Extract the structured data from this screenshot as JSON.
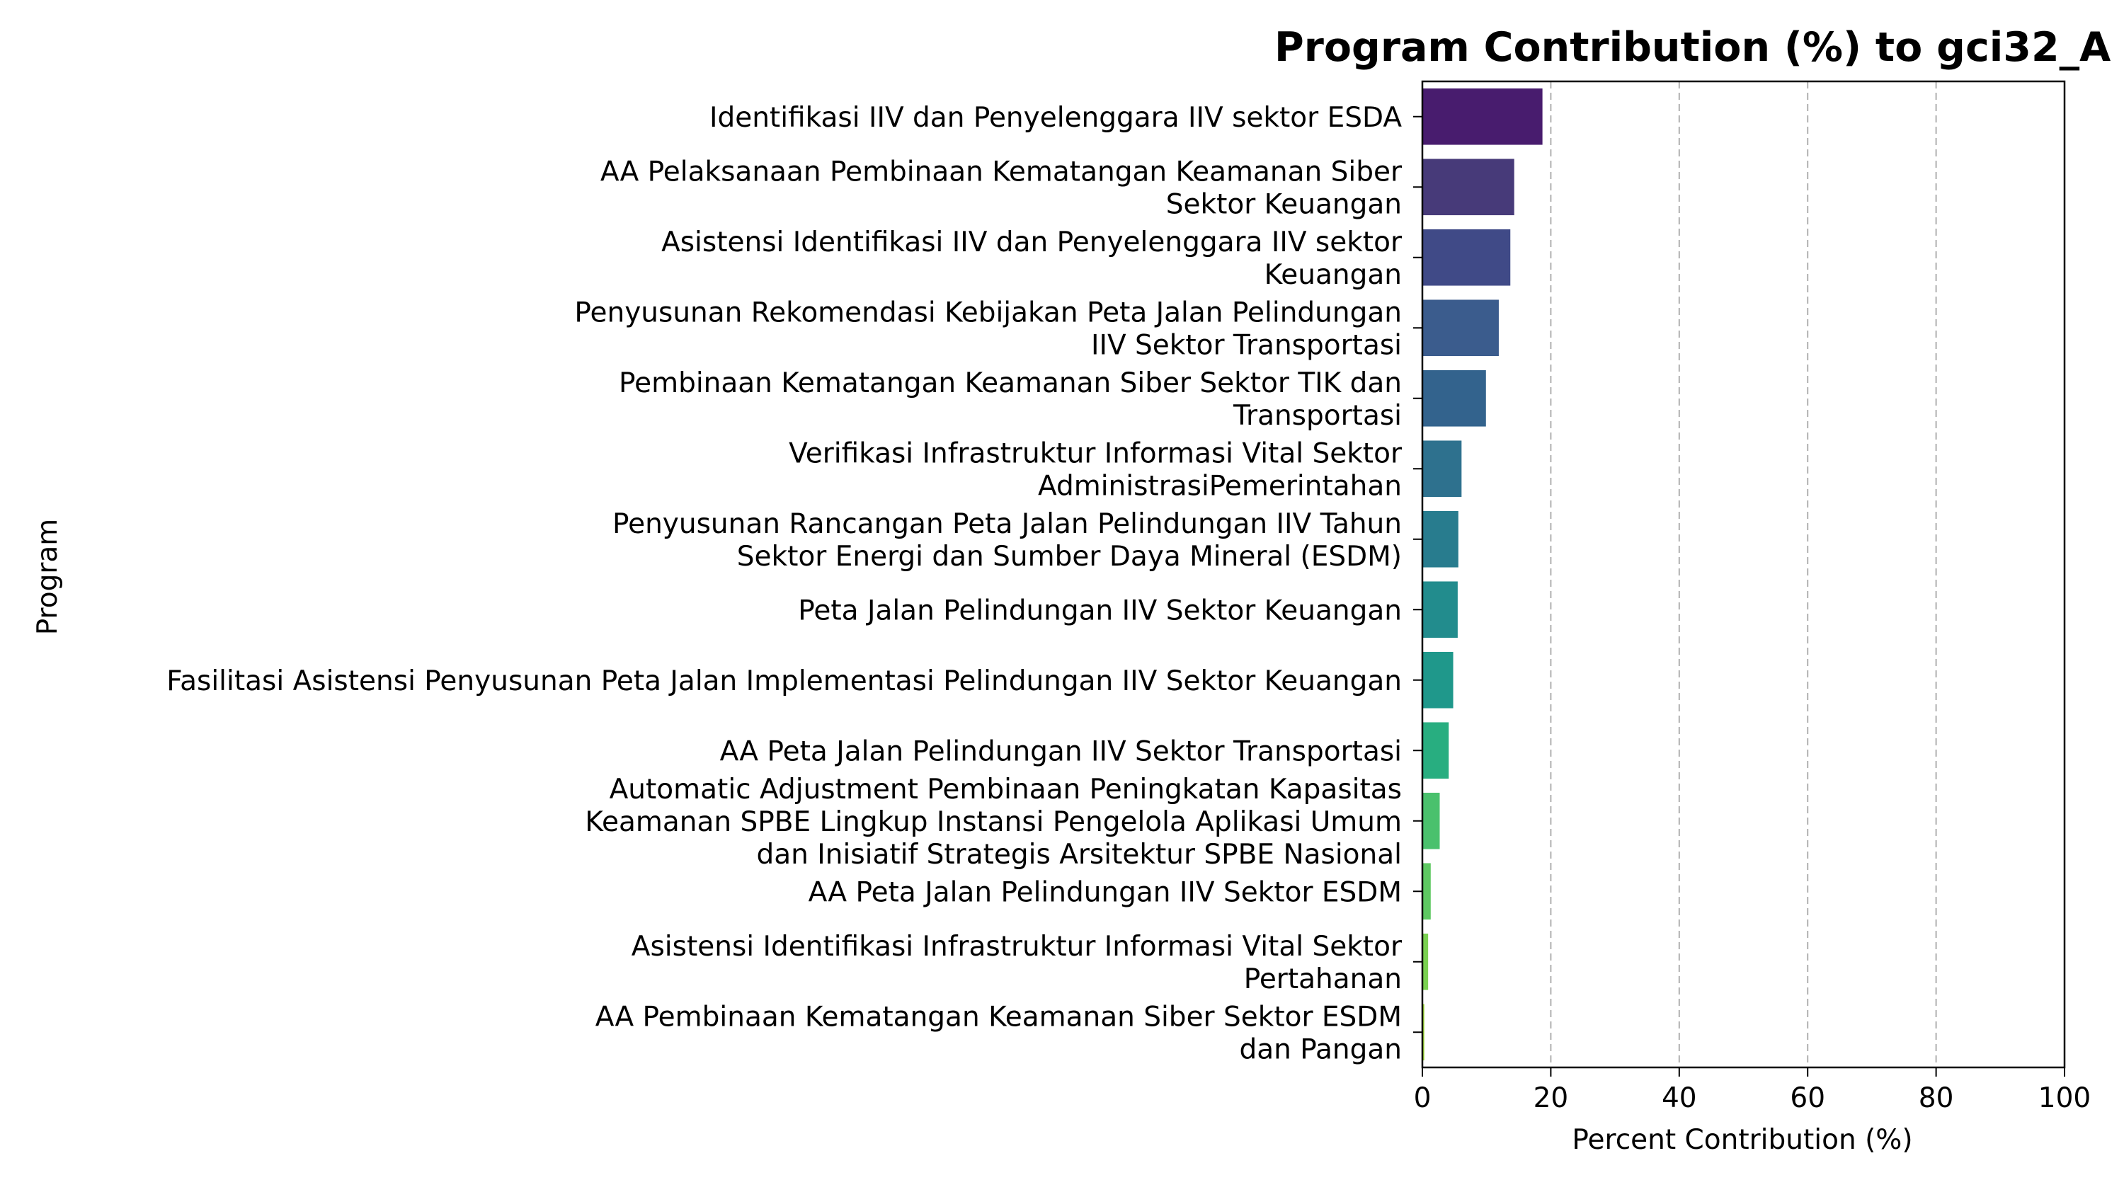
{
  "chart_data": {
    "type": "bar",
    "orientation": "horizontal",
    "title": "Program Contribution (%) to gci32_A",
    "xlabel": "Percent Contribution (%)",
    "ylabel": "Program",
    "xlim": [
      0,
      100
    ],
    "xticks": [
      "0",
      "20",
      "40",
      "60",
      "80",
      "100"
    ],
    "grid": "x-dashed",
    "categories": [
      [
        "Identifikasi IIV dan Penyelenggara IIV sektor ESDA"
      ],
      [
        "AA Pelaksanaan Pembinaan Kematangan Keamanan Siber",
        "Sektor Keuangan"
      ],
      [
        "Asistensi Identifikasi IIV dan Penyelenggara IIV sektor",
        "Keuangan"
      ],
      [
        "Penyusunan Rekomendasi Kebijakan Peta Jalan Pelindungan",
        "IIV Sektor Transportasi"
      ],
      [
        "Pembinaan Kematangan Keamanan Siber Sektor TIK dan",
        "Transportasi"
      ],
      [
        "Verifikasi Infrastruktur Informasi Vital Sektor",
        "AdministrasiPemerintahan"
      ],
      [
        "Penyusunan Rancangan Peta Jalan Pelindungan IIV Tahun",
        "Sektor Energi dan Sumber Daya Mineral (ESDM)"
      ],
      [
        "Peta Jalan Pelindungan IIV Sektor Keuangan"
      ],
      [
        "Fasilitasi Asistensi Penyusunan Peta Jalan Implementasi Pelindungan IIV Sektor  Keuangan"
      ],
      [
        "AA Peta Jalan Pelindungan IIV Sektor Transportasi"
      ],
      [
        "Automatic Adjustment Pembinaan Peningkatan Kapasitas",
        "Keamanan SPBE Lingkup Instansi Pengelola Aplikasi Umum",
        "dan Inisiatif Strategis Arsitektur SPBE Nasional"
      ],
      [
        "AA Peta Jalan Pelindungan IIV Sektor ESDM"
      ],
      [
        "Asistensi Identifikasi Infrastruktur Informasi Vital Sektor",
        "Pertahanan"
      ],
      [
        "AA Pembinaan Kematangan Keamanan Siber Sektor ESDM",
        "dan Pangan"
      ]
    ],
    "values": [
      18.7,
      14.3,
      13.7,
      11.9,
      9.9,
      6.1,
      5.6,
      5.5,
      4.8,
      4.1,
      2.7,
      1.3,
      0.9,
      0.3
    ],
    "colors": [
      "#481c6e",
      "#473a79",
      "#404a87",
      "#3b5c8d",
      "#33638d",
      "#2e718e",
      "#287c8e",
      "#228c8d",
      "#1f988b",
      "#28ae80",
      "#4ac16d",
      "#5ec962",
      "#7ad151",
      "#a0da39"
    ]
  }
}
